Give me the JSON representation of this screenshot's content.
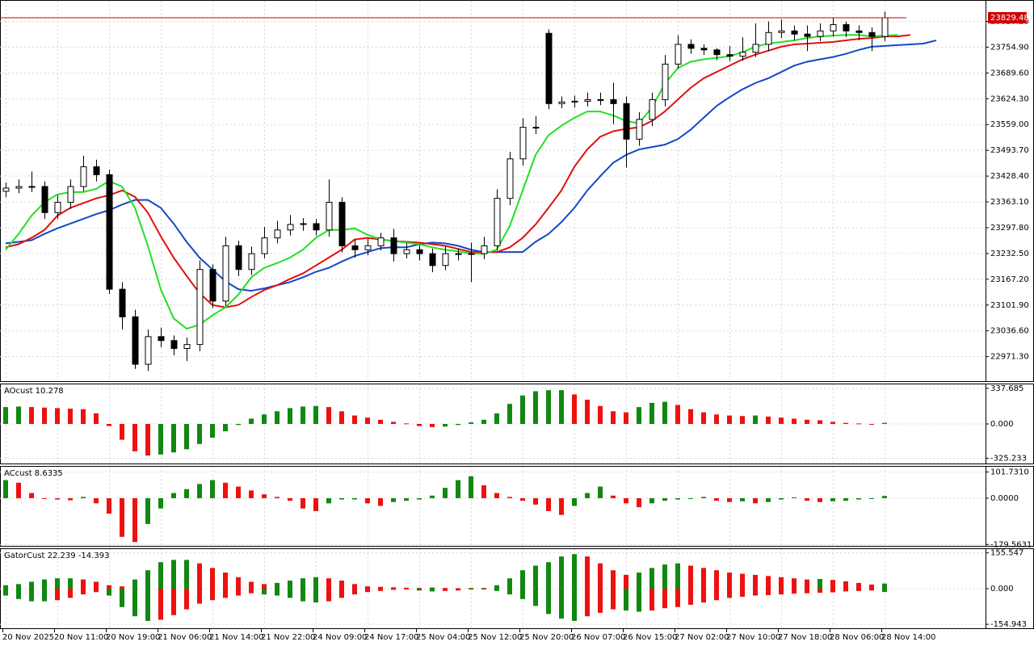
{
  "chart_data": [
    {
      "type": "candlestick",
      "open": [
        23390,
        23398,
        23402,
        23402,
        23336,
        23362,
        23402,
        23452,
        23432,
        23142,
        23072,
        22952,
        23022,
        23012,
        22992,
        23002,
        23192,
        23112,
        23252,
        23192,
        23232,
        23272,
        23292,
        23306,
        23308,
        23292,
        23362,
        23252,
        23242,
        23252,
        23272,
        23232,
        23242,
        23232,
        23202,
        23232,
        23232,
        23232,
        23252,
        23372,
        23472,
        23552,
        23790,
        23612,
        23616,
        23618,
        23622,
        23622,
        23612,
        23522,
        23572,
        23622,
        23712,
        23762,
        23752,
        23748,
        23736,
        23732,
        23742,
        23762,
        23792,
        23796,
        23788,
        23782,
        23796,
        23812,
        23796,
        23792,
        23782
      ],
      "high": [
        23412,
        23420,
        23440,
        23415,
        23380,
        23420,
        23480,
        23470,
        23445,
        23160,
        23090,
        23040,
        23045,
        23025,
        23020,
        23215,
        23205,
        23275,
        23265,
        23250,
        23300,
        23315,
        23330,
        23322,
        23320,
        23420,
        23375,
        23268,
        23270,
        23285,
        23295,
        23258,
        23255,
        23245,
        23250,
        23245,
        23260,
        23275,
        23395,
        23490,
        23575,
        23580,
        23800,
        23630,
        23632,
        23640,
        23640,
        23665,
        23630,
        23590,
        23640,
        23735,
        23785,
        23775,
        23762,
        23752,
        23758,
        23780,
        23815,
        23820,
        23825,
        23810,
        23810,
        23815,
        23830,
        23820,
        23810,
        23805,
        23845
      ],
      "low": [
        23375,
        23385,
        23388,
        23320,
        23320,
        23345,
        23390,
        23415,
        23130,
        23040,
        22940,
        22935,
        22995,
        22975,
        22960,
        22985,
        23095,
        23100,
        23175,
        23178,
        23220,
        23258,
        23278,
        23290,
        23278,
        23275,
        23235,
        23222,
        23228,
        23240,
        23212,
        23220,
        23215,
        23185,
        23190,
        23215,
        23160,
        23218,
        23240,
        23355,
        23455,
        23535,
        23598,
        23600,
        23602,
        23605,
        23608,
        23560,
        23450,
        23505,
        23555,
        23605,
        23700,
        23738,
        23735,
        23722,
        23720,
        23720,
        23730,
        23745,
        23778,
        23772,
        23745,
        23770,
        23782,
        23780,
        23772,
        23745,
        23770
      ],
      "close": [
        23398,
        23402,
        23402,
        23336,
        23362,
        23402,
        23452,
        23432,
        23142,
        23072,
        22952,
        23022,
        23012,
        22992,
        23002,
        23192,
        23112,
        23252,
        23192,
        23232,
        23272,
        23292,
        23306,
        23308,
        23292,
        23362,
        23252,
        23242,
        23252,
        23272,
        23232,
        23242,
        23232,
        23202,
        23232,
        23232,
        23232,
        23252,
        23372,
        23472,
        23552,
        23552,
        23612,
        23616,
        23618,
        23622,
        23622,
        23612,
        23522,
        23572,
        23622,
        23712,
        23762,
        23752,
        23748,
        23736,
        23732,
        23742,
        23762,
        23792,
        23796,
        23788,
        23782,
        23796,
        23812,
        23796,
        23792,
        23782,
        23829.48
      ],
      "up_color": "#ffffff",
      "down_color": "#000000",
      "series": [
        {
          "color": "#1547c8",
          "values": [
            23258,
            23262,
            23266,
            23282,
            23296,
            23308,
            23320,
            23332,
            23342,
            23356,
            23368,
            23368,
            23348,
            23308,
            23262,
            23222,
            23192,
            23162,
            23142,
            23138,
            23144,
            23152,
            23160,
            23172,
            23186,
            23196,
            23212,
            23226,
            23236,
            23246,
            23248,
            23248,
            23256,
            23260,
            23258,
            23252,
            23242,
            23236,
            23236,
            23236,
            23236,
            23262,
            23282,
            23312,
            23348,
            23392,
            23428,
            23462,
            23482,
            23496,
            23502,
            23508,
            23522,
            23546,
            23576,
            23606,
            23628,
            23648,
            23664,
            23676,
            23692,
            23708,
            23718,
            23724,
            23730,
            23738,
            23748,
            23756,
            23758,
            23760,
            23762,
            23764,
            23772
          ]
        },
        {
          "color": "#e01010",
          "values": [
            23248,
            23256,
            23272,
            23292,
            23328,
            23348,
            23360,
            23372,
            23380,
            23392,
            23376,
            23336,
            23276,
            23222,
            23176,
            23132,
            23102,
            23096,
            23102,
            23122,
            23140,
            23152,
            23168,
            23182,
            23202,
            23222,
            23242,
            23268,
            23272,
            23268,
            23264,
            23262,
            23260,
            23256,
            23252,
            23244,
            23236,
            23236,
            23236,
            23248,
            23272,
            23306,
            23348,
            23392,
            23452,
            23496,
            23528,
            23542,
            23548,
            23552,
            23568,
            23592,
            23622,
            23652,
            23676,
            23692,
            23708,
            23724,
            23736,
            23746,
            23756,
            23762,
            23764,
            23766,
            23768,
            23772,
            23776,
            23778,
            23782,
            23782,
            23786,
            null,
            null
          ]
        },
        {
          "color": "#22e022",
          "values": [
            23242,
            23282,
            23328,
            23362,
            23382,
            23388,
            23388,
            23396,
            23416,
            23402,
            23348,
            23252,
            23142,
            23068,
            23042,
            23052,
            23076,
            23096,
            23128,
            23172,
            23196,
            23208,
            23222,
            23242,
            23272,
            23292,
            23292,
            23296,
            23280,
            23268,
            23264,
            23260,
            23256,
            23248,
            23242,
            23238,
            23232,
            23232,
            23242,
            23302,
            23392,
            23482,
            23532,
            23556,
            23576,
            23592,
            23592,
            23582,
            23568,
            23562,
            23602,
            23662,
            23702,
            23718,
            23724,
            23728,
            23732,
            23742,
            23756,
            23764,
            23768,
            23772,
            23778,
            23782,
            23784,
            23786,
            23786,
            23782,
            23784,
            23786,
            null,
            null,
            null
          ]
        }
      ],
      "ylim": [
        22909.2,
        23872.3
      ],
      "yticks": [
        {
          "value": 22971.3,
          "label": "22971.30"
        },
        {
          "value": 23036.6,
          "label": "23036.60"
        },
        {
          "value": 23101.9,
          "label": "23101.90"
        },
        {
          "value": 23167.2,
          "label": "23167.20"
        },
        {
          "value": 23232.5,
          "label": "23232.50"
        },
        {
          "value": 23297.8,
          "label": "23297.80"
        },
        {
          "value": 23363.1,
          "label": "23363.10"
        },
        {
          "value": 23428.4,
          "label": "23428.40"
        },
        {
          "value": 23493.7,
          "label": "23493.70"
        },
        {
          "value": 23559,
          "label": "23559.00"
        },
        {
          "value": 23624.3,
          "label": "23624.30"
        },
        {
          "value": 23689.6,
          "label": "23689.60"
        },
        {
          "value": 23754.9,
          "label": "23754.90"
        },
        {
          "value": 23820.2,
          "label": "23820.20"
        }
      ],
      "current_price": 23829.48,
      "current_price_color": "#cc0000",
      "grid": true,
      "x_labels": [
        "20 Nov 2025",
        "20 Nov 11:00",
        "20 Nov 19:00",
        "21 Nov 06:00",
        "21 Nov 14:00",
        "21 Nov 22:00",
        "24 Nov 09:00",
        "24 Nov 17:00",
        "25 Nov 04:00",
        "25 Nov 12:00",
        "25 Nov 20:00",
        "26 Nov 07:00",
        "26 Nov 15:00",
        "27 Nov 02:00",
        "27 Nov 10:00",
        "27 Nov 18:00",
        "28 Nov 06:00",
        "28 Nov 14:00"
      ]
    },
    {
      "type": "bar",
      "title": "AOcust 10.278",
      "up_color": "#118811",
      "down_color": "#ee1111",
      "values": [
        160,
        165,
        160,
        155,
        150,
        145,
        140,
        100,
        -20,
        -150,
        -260,
        -300,
        -290,
        -270,
        -240,
        -190,
        -130,
        -70,
        -10,
        50,
        90,
        120,
        150,
        165,
        170,
        160,
        120,
        80,
        60,
        40,
        20,
        5,
        -20,
        -30,
        -25,
        -10,
        15,
        40,
        100,
        190,
        270,
        310,
        320,
        320,
        280,
        230,
        170,
        120,
        110,
        160,
        200,
        210,
        180,
        140,
        110,
        90,
        80,
        75,
        80,
        70,
        60,
        50,
        40,
        35,
        20,
        10,
        5,
        0,
        10.278
      ],
      "ylim": [
        -375.2,
        375.2
      ],
      "yticks": [
        337.685,
        {
          "value": 0,
          "label": "0.000"
        },
        -325.233
      ],
      "grid": true
    },
    {
      "type": "bar",
      "title": "ACcust 8.6335",
      "up_color": "#118811",
      "down_color": "#ee1111",
      "values": [
        70,
        60,
        20,
        0,
        -5,
        -8,
        5,
        -20,
        -60,
        -150,
        -170,
        -100,
        -40,
        20,
        35,
        55,
        70,
        60,
        45,
        30,
        15,
        5,
        -10,
        -40,
        -50,
        -20,
        -5,
        -5,
        -20,
        -30,
        -15,
        -10,
        -5,
        10,
        40,
        70,
        85,
        50,
        20,
        5,
        -10,
        -25,
        -50,
        -65,
        -30,
        20,
        45,
        10,
        -20,
        -35,
        -20,
        -10,
        -5,
        0,
        5,
        -10,
        -15,
        -12,
        -20,
        -15,
        -5,
        3,
        -10,
        -15,
        -12,
        -10,
        -5,
        0,
        8.6335
      ],
      "ylim": [
        -185,
        122
      ],
      "yticks": [
        {
          "value": 101.731,
          "label": "101.7310"
        },
        {
          "value": 0,
          "label": "0.0000"
        },
        -179.5631
      ],
      "grid": true
    },
    {
      "type": "gator",
      "title": "GatorCust 22.239 -14.393",
      "up_color": "#118811",
      "down_color": "#ee1111",
      "upper": [
        15,
        20,
        30,
        40,
        45,
        45,
        40,
        30,
        15,
        10,
        40,
        80,
        115,
        125,
        125,
        110,
        90,
        70,
        50,
        30,
        20,
        25,
        35,
        45,
        50,
        45,
        35,
        20,
        10,
        8,
        6,
        4,
        3,
        5,
        3,
        2,
        3,
        3,
        15,
        45,
        80,
        100,
        115,
        140,
        150,
        140,
        110,
        80,
        60,
        70,
        90,
        105,
        110,
        100,
        90,
        80,
        70,
        65,
        60,
        55,
        50,
        45,
        40,
        42,
        38,
        32,
        25,
        18,
        22.239
      ],
      "lower": [
        -30,
        -45,
        -55,
        -55,
        -50,
        -40,
        -25,
        -15,
        -30,
        -80,
        -120,
        -140,
        -135,
        -115,
        -90,
        -65,
        -50,
        -40,
        -30,
        -20,
        -25,
        -30,
        -40,
        -55,
        -60,
        -55,
        -40,
        -25,
        -15,
        -10,
        -5,
        -3,
        -8,
        -12,
        -10,
        -8,
        -3,
        -2,
        -10,
        -25,
        -45,
        -75,
        -110,
        -130,
        -140,
        -120,
        -105,
        -90,
        -95,
        -100,
        -95,
        -85,
        -80,
        -70,
        -60,
        -50,
        -40,
        -35,
        -30,
        -28,
        -25,
        -22,
        -20,
        -18,
        -16,
        -12,
        -10,
        -8,
        -14.393
      ],
      "ylim": [
        -172,
        172
      ],
      "yticks": [
        155.547,
        {
          "value": 0,
          "label": "0.000"
        },
        -154.943
      ],
      "grid": true
    }
  ]
}
